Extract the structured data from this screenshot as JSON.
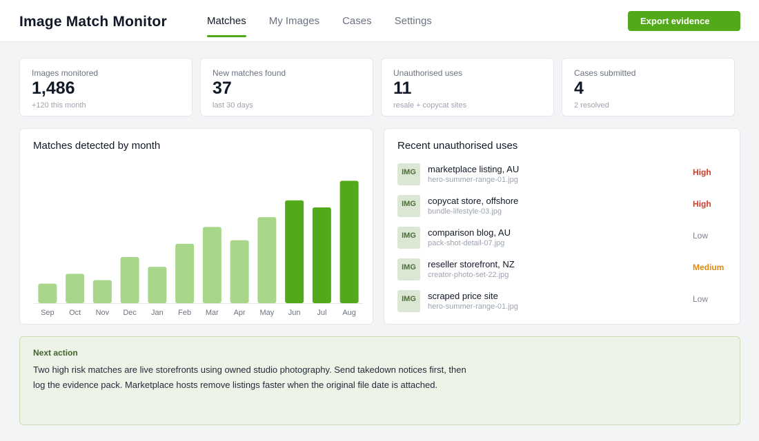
{
  "app": {
    "title": "Image Match Monitor"
  },
  "nav": {
    "tabs": [
      "Matches",
      "My Images",
      "Cases",
      "Settings"
    ],
    "active": 0
  },
  "header": {
    "export_label": "Export evidence"
  },
  "stats": [
    {
      "label": "Images monitored",
      "value": "1,486",
      "sub": "+120 this month"
    },
    {
      "label": "New matches found",
      "value": "37",
      "sub": "last 30 days"
    },
    {
      "label": "Unauthorised uses",
      "value": "11",
      "sub": "resale + copycat sites"
    },
    {
      "label": "Cases submitted",
      "value": "4",
      "sub": "2 resolved"
    }
  ],
  "chart_panel": {
    "title": "Matches detected by month"
  },
  "chart_data": {
    "type": "bar",
    "title": "Matches detected by month",
    "categories": [
      "Sep",
      "Oct",
      "Nov",
      "Dec",
      "Jan",
      "Feb",
      "Mar",
      "Apr",
      "May",
      "Jun",
      "Jul",
      "Aug"
    ],
    "values": [
      28,
      42,
      33,
      66,
      52,
      85,
      109,
      90,
      123,
      147,
      137,
      175
    ],
    "ylim": [
      0,
      200
    ],
    "grid": false,
    "highlight_from_index": 9,
    "colors": {
      "base": "#a8d68a",
      "highlight": "#52aa1a",
      "axis": "#e5e7eb",
      "tick": "#6b7280"
    }
  },
  "recent": {
    "title": "Recent unauthorised uses",
    "items": [
      {
        "thumb": "IMG",
        "title": "marketplace listing, AU",
        "file": "hero-summer-range-01.jpg",
        "risk": "High",
        "level": "high"
      },
      {
        "thumb": "IMG",
        "title": "copycat store, offshore",
        "file": "bundle-lifestyle-03.jpg",
        "risk": "High",
        "level": "high"
      },
      {
        "thumb": "IMG",
        "title": "comparison blog, AU",
        "file": "pack-shot-detail-07.jpg",
        "risk": "Low",
        "level": "low"
      },
      {
        "thumb": "IMG",
        "title": "reseller storefront, NZ",
        "file": "creator-photo-set-22.jpg",
        "risk": "Medium",
        "level": "medium"
      },
      {
        "thumb": "IMG",
        "title": "scraped price site",
        "file": "hero-summer-range-01.jpg",
        "risk": "Low",
        "level": "low"
      }
    ]
  },
  "next_action": {
    "title": "Next action",
    "lines": [
      "Two high risk matches are live storefronts using owned studio photography. Send takedown notices first, then",
      "log the evidence pack. Marketplace hosts remove listings faster when the original file date is attached."
    ]
  },
  "colors": {
    "brand": "#52aa1a",
    "high": "#d13b2a",
    "medium": "#e08a12",
    "low": "#7b818c"
  }
}
